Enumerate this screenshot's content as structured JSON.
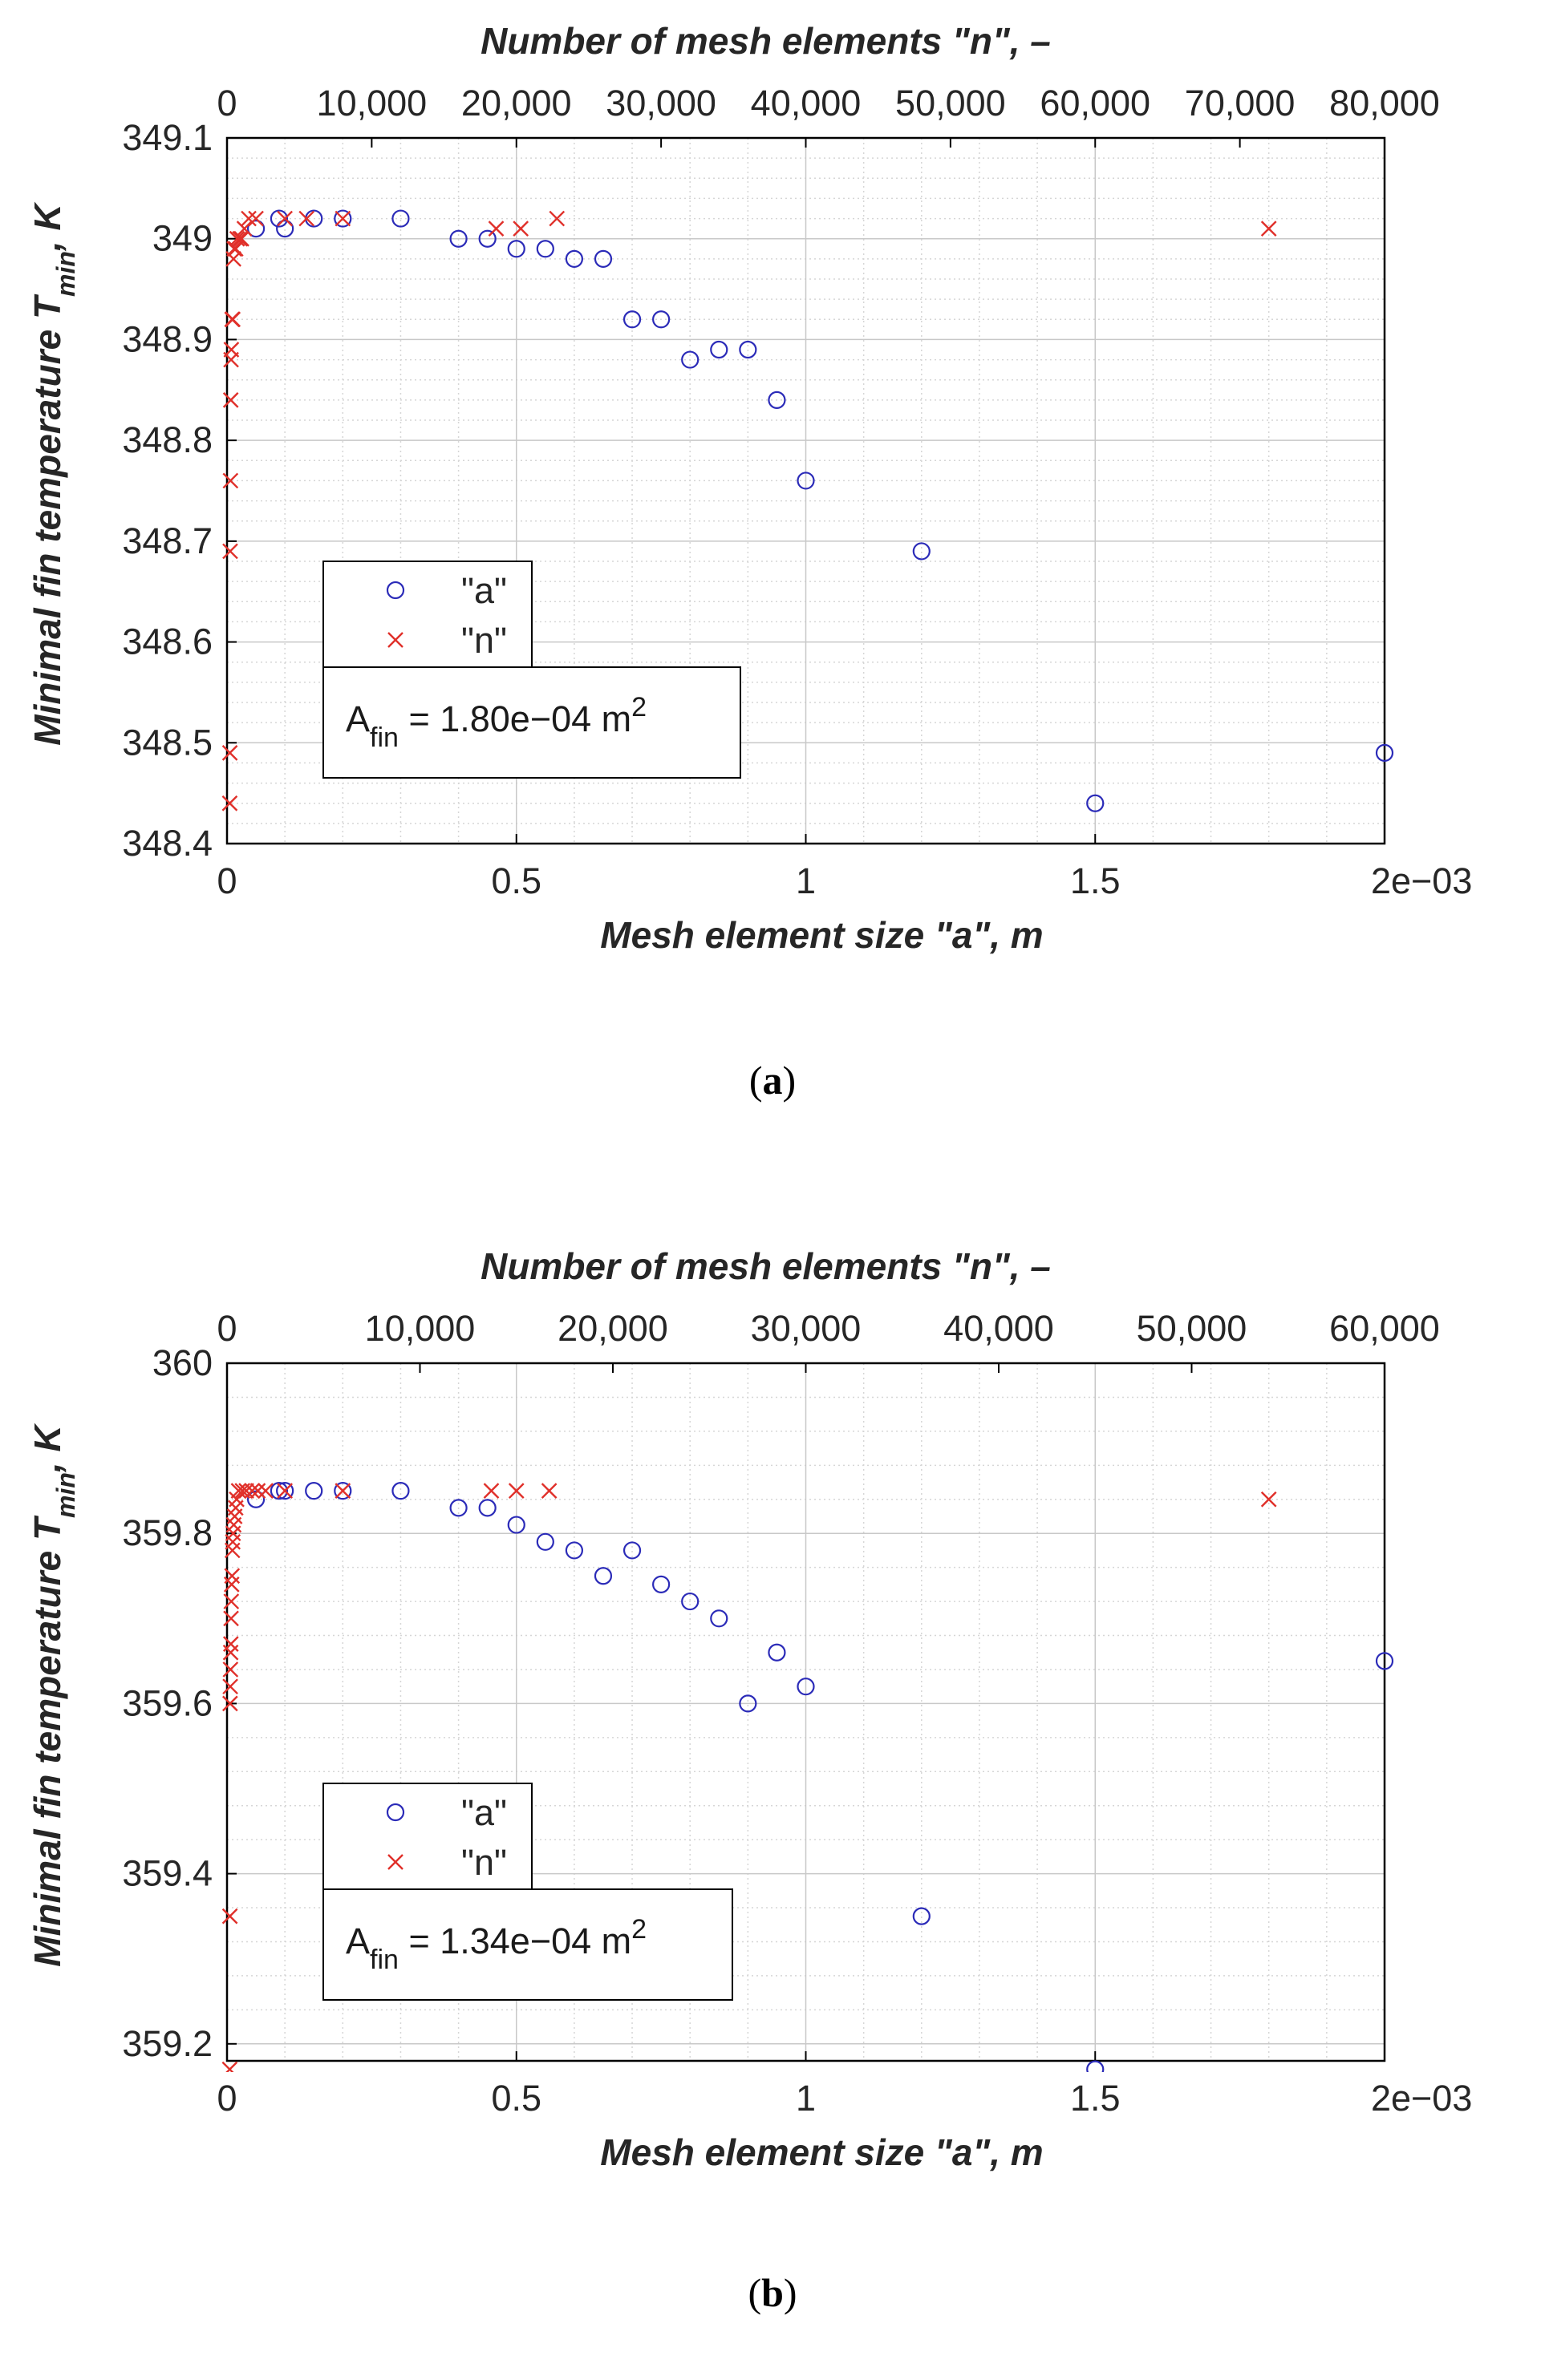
{
  "chart_data": [
    {
      "type": "scatter",
      "panel": "(a)",
      "panel_paren_open": "(",
      "panel_letter": "a",
      "panel_paren_close": ")",
      "ylabel": "Minimal fin temperature T",
      "ylabel_sub": "min",
      "ylabel_suffix": ", K",
      "xlabel_bottom": "Mesh element size \"a\", m",
      "xlabel_top": "Number of mesh elements \"n\", –",
      "x_bottom_range": [
        0,
        2
      ],
      "x_bottom_ticks": [
        0,
        0.5,
        1,
        1.5,
        2
      ],
      "x_bottom_tick_labels": [
        "0",
        "0.5",
        "1",
        "1.5",
        "2"
      ],
      "x_bottom_exponent": "e−03",
      "x_top_range": [
        0,
        80000
      ],
      "x_top_ticks": [
        0,
        10000,
        20000,
        30000,
        40000,
        50000,
        60000,
        70000,
        80000
      ],
      "x_top_tick_labels": [
        "0",
        "10,000",
        "20,000",
        "30,000",
        "40,000",
        "50,000",
        "60,000",
        "70,000",
        "80,000"
      ],
      "y_range": [
        348.4,
        349.1
      ],
      "y_ticks": [
        348.4,
        348.5,
        348.6,
        348.7,
        348.8,
        348.9,
        349,
        349.1
      ],
      "y_tick_labels": [
        "348.4",
        "348.5",
        "348.6",
        "348.7",
        "348.8",
        "348.9",
        "349",
        "349.1"
      ],
      "grid": true,
      "legend": [
        "\"a\"",
        "\"n\""
      ],
      "annotation": {
        "main": "A",
        "sub": "fin",
        "mid": " = 1.80e−04 m",
        "sup": "2"
      },
      "series": [
        {
          "name": "\"a\"",
          "marker": "circle",
          "color": "#2b2bb8",
          "x": [
            0.05,
            0.09,
            0.1,
            0.15,
            0.2,
            0.3,
            0.4,
            0.45,
            0.5,
            0.55,
            0.6,
            0.65,
            0.7,
            0.75,
            0.8,
            0.85,
            0.9,
            0.95,
            1.0,
            1.2,
            1.5,
            2.0
          ],
          "y": [
            349.01,
            349.02,
            349.01,
            349.02,
            349.02,
            349.02,
            349.0,
            349.0,
            348.99,
            348.99,
            348.98,
            348.98,
            348.92,
            348.92,
            348.88,
            348.89,
            348.89,
            348.84,
            348.76,
            348.69,
            348.44,
            348.49
          ]
        },
        {
          "name": "\"n\"",
          "marker": "x",
          "color": "#e0302a",
          "x": [
            190,
            200,
            220,
            240,
            260,
            280,
            300,
            350,
            400,
            450,
            500,
            600,
            700,
            900,
            1000,
            1200,
            1500,
            2000,
            4000,
            5500,
            8000,
            18600,
            20300,
            22800,
            72000
          ],
          "y": [
            348.44,
            348.49,
            348.69,
            348.76,
            348.84,
            348.88,
            348.89,
            348.92,
            348.92,
            348.98,
            348.99,
            348.99,
            349.0,
            349.0,
            349.0,
            349.01,
            349.02,
            349.02,
            349.02,
            349.02,
            349.02,
            349.01,
            349.01,
            349.02,
            349.01
          ]
        }
      ]
    },
    {
      "type": "scatter",
      "panel": "(b)",
      "panel_paren_open": "(",
      "panel_letter": "b",
      "panel_paren_close": ")",
      "ylabel": "Minimal fin temperature T",
      "ylabel_sub": "min",
      "ylabel_suffix": ", K",
      "xlabel_bottom": "Mesh element size \"a\", m",
      "xlabel_top": "Number of mesh elements \"n\", –",
      "x_bottom_range": [
        0,
        2
      ],
      "x_bottom_ticks": [
        0,
        0.5,
        1,
        1.5,
        2
      ],
      "x_bottom_tick_labels": [
        "0",
        "0.5",
        "1",
        "1.5",
        "2"
      ],
      "x_bottom_exponent": "e−03",
      "x_top_range": [
        0,
        60000
      ],
      "x_top_ticks": [
        0,
        10000,
        20000,
        30000,
        40000,
        50000,
        60000
      ],
      "x_top_tick_labels": [
        "0",
        "10,000",
        "20,000",
        "30,000",
        "40,000",
        "50,000",
        "60,000"
      ],
      "y_range": [
        359.18,
        360
      ],
      "y_ticks": [
        359.2,
        359.4,
        359.6,
        359.8,
        360
      ],
      "y_tick_labels": [
        "359.2",
        "359.4",
        "359.6",
        "359.8",
        "360"
      ],
      "grid": true,
      "legend": [
        "\"a\"",
        "\"n\""
      ],
      "annotation": {
        "main": "A",
        "sub": "fin",
        "mid": " = 1.34e−04 m",
        "sup": "2"
      },
      "series": [
        {
          "name": "\"a\"",
          "marker": "circle",
          "color": "#2b2bb8",
          "x": [
            0.05,
            0.09,
            0.1,
            0.15,
            0.2,
            0.3,
            0.4,
            0.45,
            0.5,
            0.55,
            0.6,
            0.65,
            0.7,
            0.75,
            0.8,
            0.85,
            0.9,
            0.95,
            1.0,
            1.2,
            1.5,
            2.0
          ],
          "y": [
            359.84,
            359.85,
            359.85,
            359.85,
            359.85,
            359.85,
            359.83,
            359.83,
            359.81,
            359.79,
            359.78,
            359.75,
            359.78,
            359.74,
            359.72,
            359.7,
            359.6,
            359.66,
            359.62,
            359.35,
            359.17,
            359.65
          ]
        },
        {
          "name": "\"n\"",
          "marker": "x",
          "color": "#e0302a",
          "x": [
            140,
            150,
            160,
            170,
            180,
            190,
            200,
            210,
            220,
            240,
            260,
            280,
            300,
            320,
            350,
            400,
            450,
            500,
            600,
            800,
            1000,
            1300,
            1600,
            2000,
            3000,
            6000,
            13700,
            15000,
            16700,
            54000
          ],
          "y": [
            359.17,
            359.35,
            359.6,
            359.62,
            359.64,
            359.66,
            359.67,
            359.7,
            359.72,
            359.74,
            359.75,
            359.78,
            359.79,
            359.8,
            359.81,
            359.82,
            359.83,
            359.84,
            359.85,
            359.85,
            359.85,
            359.85,
            359.85,
            359.85,
            359.85,
            359.85,
            359.85,
            359.85,
            359.85,
            359.84
          ]
        }
      ]
    }
  ]
}
